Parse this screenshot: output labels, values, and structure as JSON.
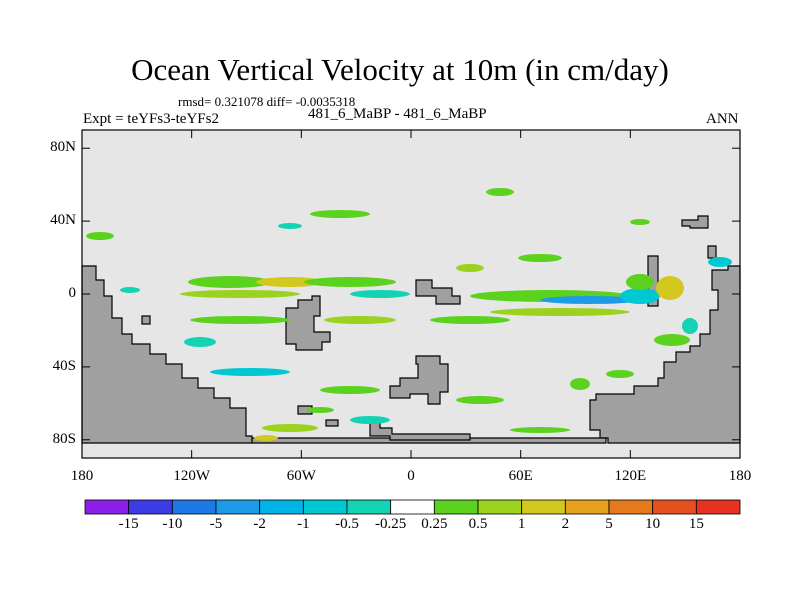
{
  "title": "Ocean Vertical Velocity at 10m (in cm/day)",
  "stats_line": "rmsd= 0.321078 diff= -0.0035318",
  "experiment_label": "Expt = teYFs3-teYFs2",
  "case_label": "481_6_MaBP - 481_6_MaBP",
  "season_label": "ANN",
  "map": {
    "lat_ticks": [
      {
        "value": 80,
        "label": "80N"
      },
      {
        "value": 40,
        "label": "40N"
      },
      {
        "value": 0,
        "label": "0"
      },
      {
        "value": -40,
        "label": "40S"
      },
      {
        "value": -80,
        "label": "80S"
      }
    ],
    "lon_ticks": [
      {
        "value": -180,
        "label": "180"
      },
      {
        "value": -120,
        "label": "120W"
      },
      {
        "value": -60,
        "label": "60W"
      },
      {
        "value": 0,
        "label": "0"
      },
      {
        "value": 60,
        "label": "60E"
      },
      {
        "value": 120,
        "label": "120E"
      },
      {
        "value": 180,
        "label": "180"
      }
    ],
    "lat_range": [
      -90,
      90
    ],
    "lon_range": [
      -180,
      180
    ],
    "background_color": "#e6e6e6",
    "land_color": "#a0a0a0"
  },
  "colorbar": {
    "levels": [
      "-15",
      "-10",
      "-5",
      "-2",
      "-1",
      "-0.5",
      "-0.25",
      "0.25",
      "0.5",
      "1",
      "2",
      "5",
      "10",
      "15"
    ],
    "colors": [
      "#8c1eea",
      "#3c3ce6",
      "#1e78e6",
      "#1e9be6",
      "#00b4e6",
      "#00c8d2",
      "#14d2b4",
      "#ffffff",
      "#5ad21e",
      "#9bd21e",
      "#d2c81e",
      "#e6a01e",
      "#e6781e",
      "#e6501e",
      "#e6321e"
    ]
  }
}
